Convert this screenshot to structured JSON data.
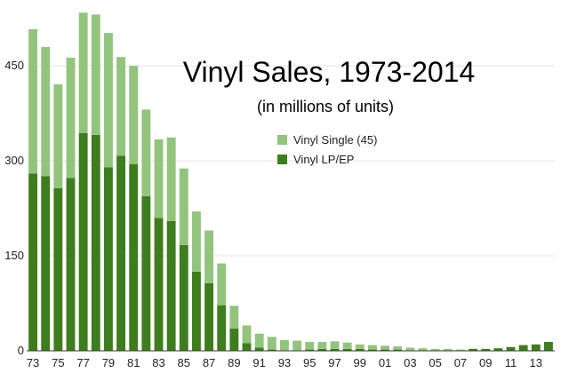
{
  "chart_data": {
    "type": "bar",
    "stacked": true,
    "title": "Vinyl Sales, 1973-2014",
    "subtitle": "(in millions of units)",
    "xlabel": "",
    "ylabel": "",
    "ylim": [
      0,
      540
    ],
    "yticks": [
      0,
      150,
      300,
      450
    ],
    "grid": true,
    "legend_position": "top-center",
    "categories": [
      "73",
      "74",
      "75",
      "76",
      "77",
      "78",
      "79",
      "80",
      "81",
      "82",
      "83",
      "84",
      "85",
      "86",
      "87",
      "88",
      "89",
      "90",
      "91",
      "92",
      "93",
      "94",
      "95",
      "96",
      "97",
      "98",
      "99",
      "00",
      "01",
      "02",
      "03",
      "04",
      "05",
      "06",
      "07",
      "08",
      "09",
      "10",
      "11",
      "12",
      "13",
      "14"
    ],
    "xtick_labels": [
      "73",
      "75",
      "77",
      "79",
      "81",
      "83",
      "85",
      "87",
      "89",
      "91",
      "93",
      "95",
      "97",
      "99",
      "01",
      "03",
      "05",
      "07",
      "09",
      "11",
      "13"
    ],
    "series": [
      {
        "name": "Vinyl LP/EP",
        "color": "#3e7d1e",
        "values": [
          280,
          276,
          257,
          273,
          344,
          341,
          290,
          308,
          295,
          244,
          210,
          205,
          167,
          125,
          107,
          72,
          35,
          12,
          5,
          2,
          1,
          1,
          2,
          3,
          3,
          3,
          3,
          2,
          2,
          2,
          1,
          1,
          1,
          1,
          1,
          3,
          3,
          4,
          6,
          9,
          10,
          14
        ]
      },
      {
        "name": "Vinyl Single (45)",
        "color": "#93c47d",
        "values": [
          228,
          204,
          164,
          190,
          190,
          190,
          212,
          156,
          155,
          137,
          124,
          132,
          121,
          95,
          83,
          66,
          36,
          28,
          22,
          20,
          16,
          15,
          12,
          11,
          12,
          10,
          7,
          7,
          6,
          5,
          4,
          3,
          2,
          2,
          1,
          0,
          0,
          0,
          0,
          0,
          0,
          0
        ]
      }
    ]
  }
}
